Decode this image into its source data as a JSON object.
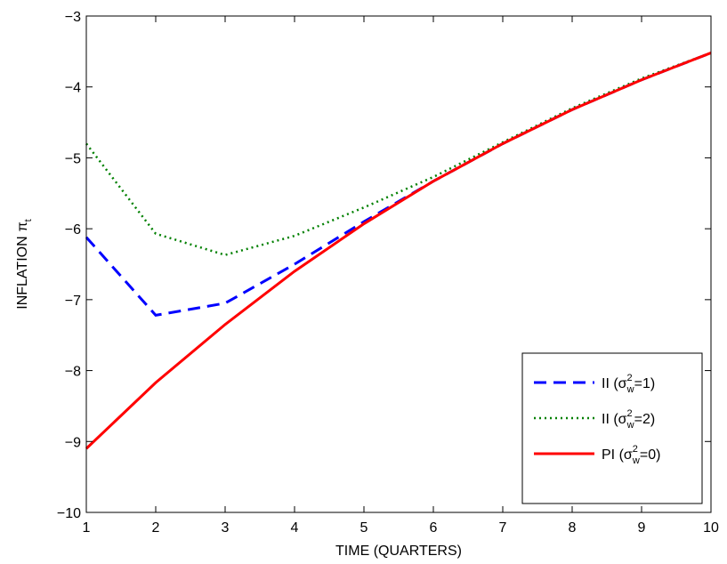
{
  "chart_data": {
    "type": "line",
    "xlabel": "TIME (QUARTERS)",
    "ylabel": {
      "main": "INFLATION",
      "symbol": "π",
      "subscript": "t"
    },
    "xlim": [
      1,
      10
    ],
    "ylim": [
      -10,
      -3
    ],
    "xticks": [
      1,
      2,
      3,
      4,
      5,
      6,
      7,
      8,
      9,
      10
    ],
    "yticks": [
      -10,
      -9,
      -8,
      -7,
      -6,
      -5,
      -4,
      -3
    ],
    "x": [
      1,
      2,
      3,
      4,
      5,
      6,
      7,
      8,
      9,
      10
    ],
    "grid": false,
    "legend_position": "bottom-right",
    "series": [
      {
        "name": {
          "prefix": "II (",
          "sigma": "σ",
          "sup": "2",
          "sub": "w",
          "suffix": "=1)"
        },
        "values": [
          -6.12,
          -7.22,
          -7.05,
          -6.5,
          -5.9,
          -5.33,
          -4.8,
          -4.32,
          -3.9,
          -3.52
        ],
        "color": "#0000ff",
        "style": "dashed"
      },
      {
        "name": {
          "prefix": "II (",
          "sigma": "σ",
          "sup": "2",
          "sub": "w",
          "suffix": "=2)"
        },
        "values": [
          -4.8,
          -6.07,
          -6.37,
          -6.1,
          -5.7,
          -5.27,
          -4.78,
          -4.3,
          -3.88,
          -3.52
        ],
        "color": "#008000",
        "style": "dotted"
      },
      {
        "name": {
          "prefix": "PI (",
          "sigma": "σ",
          "sup": "2",
          "sub": "w",
          "suffix": "=0)"
        },
        "values": [
          -9.1,
          -8.17,
          -7.35,
          -6.6,
          -5.93,
          -5.33,
          -4.8,
          -4.32,
          -3.9,
          -3.52
        ],
        "color": "#ff0000",
        "style": "solid"
      }
    ]
  }
}
